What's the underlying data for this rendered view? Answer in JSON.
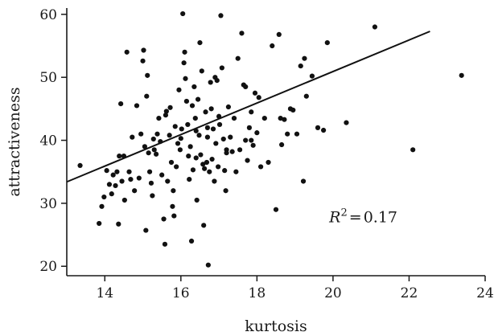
{
  "chart_data": {
    "type": "scatter",
    "title": "",
    "xlabel": "kurtosis",
    "ylabel": "attractiveness",
    "xlim": [
      13,
      24
    ],
    "ylim": [
      18.5,
      61
    ],
    "xticks": [
      14,
      16,
      18,
      20,
      22,
      24
    ],
    "yticks": [
      20,
      30,
      40,
      50,
      60
    ],
    "grid": false,
    "legend": "none",
    "colors": {
      "points": "#111111",
      "line": "#111111",
      "axis": "#1a1a1a"
    },
    "annotation": {
      "prefix": "R",
      "superscript": "2",
      "equals": "=",
      "value": "0.17"
    },
    "fit_line": {
      "x": [
        13.0,
        22.55
      ],
      "y": [
        33.4,
        57.3
      ]
    },
    "x": [
      13.35,
      13.85,
      13.92,
      13.98,
      14.05,
      14.12,
      14.18,
      14.22,
      14.28,
      14.32,
      14.36,
      14.38,
      14.42,
      14.45,
      14.52,
      14.58,
      14.64,
      14.68,
      14.72,
      14.78,
      14.84,
      14.9,
      14.95,
      15.0,
      15.02,
      15.05,
      15.08,
      15.12,
      15.15,
      15.18,
      15.22,
      15.25,
      15.28,
      15.3,
      15.35,
      15.38,
      15.42,
      15.46,
      15.5,
      15.55,
      15.58,
      15.62,
      15.65,
      15.7,
      15.72,
      15.75,
      15.78,
      15.8,
      15.82,
      15.85,
      15.88,
      15.92,
      15.95,
      15.98,
      16.0,
      16.02,
      16.05,
      16.08,
      16.1,
      16.12,
      16.15,
      16.18,
      16.2,
      16.22,
      16.25,
      16.28,
      16.3,
      16.32,
      16.35,
      16.38,
      16.4,
      16.42,
      16.45,
      16.48,
      16.5,
      16.52,
      16.55,
      16.58,
      16.6,
      16.62,
      16.65,
      16.68,
      16.7,
      16.72,
      16.75,
      16.78,
      16.8,
      16.82,
      16.85,
      16.88,
      16.9,
      16.92,
      16.95,
      16.98,
      17.0,
      17.02,
      17.05,
      17.08,
      17.12,
      17.15,
      17.18,
      17.2,
      17.25,
      17.3,
      17.35,
      17.4,
      17.45,
      17.5,
      17.55,
      17.6,
      17.65,
      17.7,
      17.75,
      17.8,
      17.85,
      17.9,
      17.95,
      18.0,
      18.05,
      18.1,
      18.2,
      18.3,
      18.4,
      18.5,
      18.58,
      18.65,
      18.72,
      18.8,
      18.88,
      18.95,
      19.05,
      19.15,
      19.22,
      19.3,
      19.45,
      19.6,
      19.75,
      19.85,
      20.35,
      21.1,
      22.1,
      23.38,
      15.1,
      15.6,
      16.4,
      17.7,
      18.62,
      19.25,
      14.5,
      16.7,
      17.2,
      17.85
    ],
    "y": [
      36.0,
      26.8,
      29.5,
      31.0,
      35.2,
      33.0,
      31.5,
      34.5,
      32.8,
      35.0,
      26.7,
      37.5,
      45.8,
      33.5,
      30.5,
      54.0,
      35.0,
      33.8,
      40.5,
      32.0,
      45.5,
      34.0,
      41.0,
      52.6,
      54.3,
      39.0,
      25.7,
      50.3,
      38.0,
      35.0,
      33.2,
      31.2,
      40.2,
      38.5,
      37.8,
      41.0,
      43.5,
      39.8,
      34.5,
      27.5,
      23.5,
      44.6,
      33.5,
      40.8,
      45.2,
      36.5,
      29.5,
      32.0,
      28.0,
      42.2,
      35.8,
      39.5,
      48.0,
      38.5,
      40.3,
      41.8,
      60.1,
      52.3,
      54.0,
      49.8,
      46.2,
      42.5,
      37.5,
      33.8,
      39.0,
      24.0,
      45.5,
      35.3,
      48.5,
      43.5,
      37.2,
      30.5,
      46.5,
      40.8,
      55.5,
      37.7,
      51.0,
      36.2,
      26.5,
      35.5,
      44.5,
      36.5,
      40.5,
      20.2,
      35.0,
      49.2,
      45.0,
      37.0,
      41.8,
      33.5,
      50.0,
      39.5,
      49.5,
      35.8,
      43.8,
      42.5,
      59.8,
      51.5,
      40.2,
      35.2,
      32.0,
      38.5,
      45.3,
      40.5,
      38.2,
      43.5,
      35.0,
      53.0,
      38.5,
      57.0,
      48.8,
      40.0,
      36.8,
      42.0,
      44.5,
      39.2,
      47.5,
      41.2,
      46.8,
      35.8,
      43.5,
      36.5,
      55.0,
      29.0,
      56.8,
      39.3,
      43.3,
      41.0,
      45.0,
      44.8,
      41.0,
      51.8,
      33.5,
      47.0,
      50.2,
      42.0,
      41.6,
      55.5,
      42.8,
      58.0,
      38.5,
      50.3,
      47.0,
      44.0,
      41.5,
      48.5,
      43.5,
      53.0,
      37.5,
      42.0,
      38.0,
      40.0
    ]
  }
}
